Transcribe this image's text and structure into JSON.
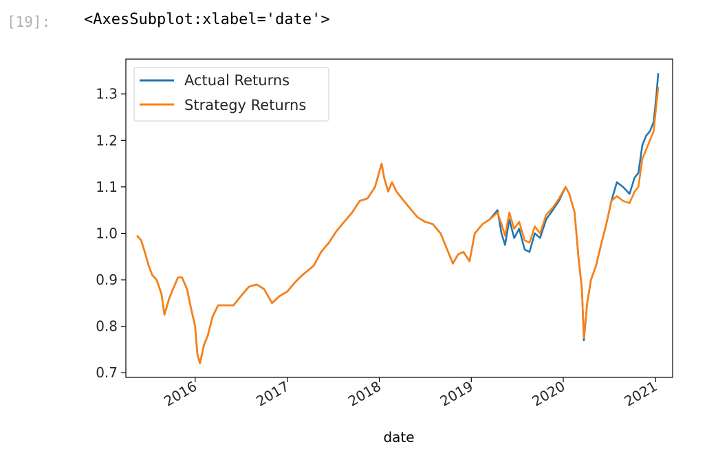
{
  "cell": {
    "prompt": "[19]:",
    "output": "<AxesSubplot:xlabel='date'>"
  },
  "chart_data": {
    "type": "line",
    "xlabel": "date",
    "ylabel": "",
    "xlim": [
      "2015-04-01",
      "2021-03-10"
    ],
    "ylim": [
      0.69,
      1.375
    ],
    "x_ticks": [
      "2016-01-01",
      "2017-01-01",
      "2018-01-01",
      "2019-01-01",
      "2020-01-01",
      "2021-01-01"
    ],
    "x_tick_labels": [
      "2016",
      "2017",
      "2018",
      "2019",
      "2020",
      "2021"
    ],
    "y_ticks": [
      0.7,
      0.8,
      0.9,
      1.0,
      1.1,
      1.2,
      1.3
    ],
    "y_tick_labels": [
      "0.7",
      "0.8",
      "0.9",
      "1.0",
      "1.1",
      "1.2",
      "1.3"
    ],
    "grid": false,
    "legend": {
      "position": "top-left",
      "entries": [
        "Actual Returns",
        "Strategy Returns"
      ]
    },
    "colors": {
      "actual": "#1f77b4",
      "strategy": "#ff7f0e"
    },
    "series": [
      {
        "name": "Actual Returns",
        "x": [
          "2015-05-15",
          "2015-06-01",
          "2015-06-15",
          "2015-07-01",
          "2015-07-15",
          "2015-08-01",
          "2015-08-20",
          "2015-09-01",
          "2015-09-20",
          "2015-10-05",
          "2015-10-25",
          "2015-11-10",
          "2015-11-30",
          "2015-12-15",
          "2016-01-01",
          "2016-01-10",
          "2016-01-20",
          "2016-02-05",
          "2016-02-20",
          "2016-03-10",
          "2016-04-01",
          "2016-05-01",
          "2016-06-01",
          "2016-07-01",
          "2016-08-01",
          "2016-09-01",
          "2016-10-01",
          "2016-11-01",
          "2016-12-01",
          "2017-01-01",
          "2017-02-01",
          "2017-03-01",
          "2017-04-15",
          "2017-05-15",
          "2017-06-15",
          "2017-07-15",
          "2017-08-15",
          "2017-09-15",
          "2017-10-15",
          "2017-11-15",
          "2017-12-15",
          "2018-01-10",
          "2018-01-20",
          "2018-02-05",
          "2018-02-20",
          "2018-03-10",
          "2018-04-01",
          "2018-05-01",
          "2018-06-01",
          "2018-07-01",
          "2018-08-01",
          "2018-09-01",
          "2018-10-01",
          "2018-10-20",
          "2018-11-10",
          "2018-12-01",
          "2018-12-25",
          "2019-01-15",
          "2019-02-15",
          "2019-03-15",
          "2019-04-15",
          "2019-05-01",
          "2019-05-15",
          "2019-06-01",
          "2019-06-20",
          "2019-07-10",
          "2019-08-01",
          "2019-08-20",
          "2019-09-10",
          "2019-10-01",
          "2019-10-25",
          "2019-11-20",
          "2019-12-15",
          "2020-01-10",
          "2020-01-25",
          "2020-02-15",
          "2020-03-01",
          "2020-03-15",
          "2020-03-23",
          "2020-04-05",
          "2020-04-20",
          "2020-05-10",
          "2020-06-01",
          "2020-06-20",
          "2020-07-10",
          "2020-08-01",
          "2020-08-25",
          "2020-09-20",
          "2020-10-10",
          "2020-10-25",
          "2020-11-10",
          "2020-11-25",
          "2020-12-10",
          "2020-12-25",
          "2021-01-05",
          "2021-01-12"
        ],
        "y": [
          0.995,
          0.985,
          0.96,
          0.93,
          0.91,
          0.9,
          0.87,
          0.825,
          0.86,
          0.88,
          0.905,
          0.905,
          0.88,
          0.84,
          0.8,
          0.74,
          0.72,
          0.76,
          0.78,
          0.82,
          0.845,
          0.845,
          0.845,
          0.865,
          0.885,
          0.89,
          0.88,
          0.85,
          0.865,
          0.875,
          0.895,
          0.91,
          0.93,
          0.96,
          0.98,
          1.005,
          1.025,
          1.045,
          1.07,
          1.075,
          1.1,
          1.15,
          1.12,
          1.09,
          1.11,
          1.09,
          1.075,
          1.055,
          1.035,
          1.025,
          1.02,
          1.0,
          0.96,
          0.935,
          0.955,
          0.96,
          0.94,
          1.0,
          1.02,
          1.03,
          1.05,
          1.0,
          0.975,
          1.03,
          0.99,
          1.01,
          0.965,
          0.96,
          1.0,
          0.99,
          1.03,
          1.05,
          1.07,
          1.1,
          1.085,
          1.045,
          0.95,
          0.88,
          0.77,
          0.85,
          0.9,
          0.93,
          0.98,
          1.02,
          1.07,
          1.11,
          1.1,
          1.085,
          1.12,
          1.13,
          1.19,
          1.21,
          1.22,
          1.24,
          1.3,
          1.345
        ]
      },
      {
        "name": "Strategy Returns",
        "x": [
          "2015-05-15",
          "2015-06-01",
          "2015-06-15",
          "2015-07-01",
          "2015-07-15",
          "2015-08-01",
          "2015-08-20",
          "2015-09-01",
          "2015-09-20",
          "2015-10-05",
          "2015-10-25",
          "2015-11-10",
          "2015-11-30",
          "2015-12-15",
          "2016-01-01",
          "2016-01-10",
          "2016-01-20",
          "2016-02-05",
          "2016-02-20",
          "2016-03-10",
          "2016-04-01",
          "2016-05-01",
          "2016-06-01",
          "2016-07-01",
          "2016-08-01",
          "2016-09-01",
          "2016-10-01",
          "2016-11-01",
          "2016-12-01",
          "2017-01-01",
          "2017-02-01",
          "2017-03-01",
          "2017-04-15",
          "2017-05-15",
          "2017-06-15",
          "2017-07-15",
          "2017-08-15",
          "2017-09-15",
          "2017-10-15",
          "2017-11-15",
          "2017-12-15",
          "2018-01-10",
          "2018-01-20",
          "2018-02-05",
          "2018-02-20",
          "2018-03-10",
          "2018-04-01",
          "2018-05-01",
          "2018-06-01",
          "2018-07-01",
          "2018-08-01",
          "2018-09-01",
          "2018-10-01",
          "2018-10-20",
          "2018-11-10",
          "2018-12-01",
          "2018-12-25",
          "2019-01-15",
          "2019-02-15",
          "2019-03-15",
          "2019-04-15",
          "2019-05-01",
          "2019-05-15",
          "2019-06-01",
          "2019-06-20",
          "2019-07-10",
          "2019-08-01",
          "2019-08-20",
          "2019-09-10",
          "2019-10-01",
          "2019-10-25",
          "2019-11-20",
          "2019-12-15",
          "2020-01-10",
          "2020-01-25",
          "2020-02-15",
          "2020-03-01",
          "2020-03-15",
          "2020-03-23",
          "2020-04-05",
          "2020-04-20",
          "2020-05-10",
          "2020-06-01",
          "2020-06-20",
          "2020-07-10",
          "2020-08-01",
          "2020-08-25",
          "2020-09-20",
          "2020-10-10",
          "2020-10-25",
          "2020-11-10",
          "2020-11-25",
          "2020-12-10",
          "2020-12-25",
          "2021-01-05",
          "2021-01-12"
        ],
        "y": [
          0.995,
          0.985,
          0.96,
          0.93,
          0.91,
          0.9,
          0.87,
          0.825,
          0.86,
          0.88,
          0.905,
          0.905,
          0.88,
          0.84,
          0.8,
          0.74,
          0.72,
          0.76,
          0.78,
          0.82,
          0.845,
          0.845,
          0.845,
          0.865,
          0.885,
          0.89,
          0.88,
          0.85,
          0.865,
          0.875,
          0.895,
          0.91,
          0.93,
          0.96,
          0.98,
          1.005,
          1.025,
          1.045,
          1.07,
          1.075,
          1.1,
          1.15,
          1.12,
          1.09,
          1.11,
          1.09,
          1.075,
          1.055,
          1.035,
          1.025,
          1.02,
          1.0,
          0.96,
          0.935,
          0.955,
          0.96,
          0.94,
          1.0,
          1.02,
          1.03,
          1.045,
          1.02,
          0.995,
          1.045,
          1.01,
          1.025,
          0.985,
          0.98,
          1.015,
          1.0,
          1.04,
          1.055,
          1.075,
          1.1,
          1.085,
          1.045,
          0.95,
          0.88,
          0.775,
          0.85,
          0.9,
          0.93,
          0.98,
          1.02,
          1.07,
          1.08,
          1.07,
          1.065,
          1.09,
          1.1,
          1.16,
          1.18,
          1.2,
          1.22,
          1.28,
          1.315
        ]
      }
    ]
  }
}
